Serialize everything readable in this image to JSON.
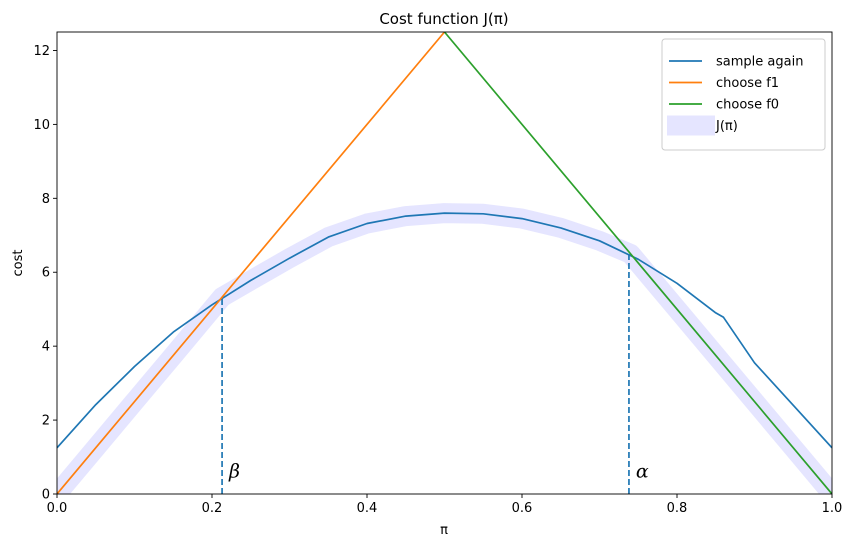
{
  "chart_data": {
    "type": "line",
    "title": "Cost function J(π)",
    "xlabel": "π",
    "ylabel": "cost",
    "xlim": [
      0,
      1
    ],
    "ylim": [
      0,
      12.5
    ],
    "xticks": [
      0.0,
      0.2,
      0.4,
      0.6,
      0.8,
      1.0
    ],
    "xtick_labels": [
      "0.0",
      "0.2",
      "0.4",
      "0.6",
      "0.8",
      "1.0"
    ],
    "yticks": [
      0,
      2,
      4,
      6,
      8,
      10,
      12
    ],
    "ytick_labels": [
      "0",
      "2",
      "4",
      "6",
      "8",
      "10",
      "12"
    ],
    "grid": false,
    "legend_position": "top-right",
    "series": [
      {
        "name": "sample again",
        "color": "#1f77b4",
        "style": "solid",
        "points": [
          [
            0.0,
            1.25
          ],
          [
            0.05,
            2.42
          ],
          [
            0.1,
            3.45
          ],
          [
            0.15,
            4.38
          ],
          [
            0.2,
            5.12
          ],
          [
            0.25,
            5.78
          ],
          [
            0.3,
            6.38
          ],
          [
            0.35,
            6.95
          ],
          [
            0.4,
            7.32
          ],
          [
            0.45,
            7.52
          ],
          [
            0.5,
            7.6
          ],
          [
            0.55,
            7.58
          ],
          [
            0.6,
            7.45
          ],
          [
            0.65,
            7.2
          ],
          [
            0.7,
            6.85
          ],
          [
            0.75,
            6.35
          ],
          [
            0.8,
            5.7
          ],
          [
            0.85,
            4.9
          ],
          [
            0.86,
            4.78
          ],
          [
            0.9,
            3.55
          ],
          [
            0.95,
            2.4
          ],
          [
            1.0,
            1.25
          ]
        ]
      },
      {
        "name": "choose f1",
        "color": "#ff7f0e",
        "style": "solid",
        "points": [
          [
            0.0,
            0.0
          ],
          [
            0.5,
            12.5
          ]
        ]
      },
      {
        "name": "choose f0",
        "color": "#2ca02c",
        "style": "solid",
        "points": [
          [
            0.5,
            12.5
          ],
          [
            1.0,
            0.0
          ]
        ]
      },
      {
        "name": "J(π)",
        "color": "#e5e5ff",
        "style": "band",
        "points": [
          [
            0.0,
            0.0
          ],
          [
            0.05,
            1.25
          ],
          [
            0.1,
            2.5
          ],
          [
            0.15,
            3.75
          ],
          [
            0.213,
            5.33
          ],
          [
            0.25,
            5.78
          ],
          [
            0.3,
            6.38
          ],
          [
            0.35,
            6.95
          ],
          [
            0.4,
            7.32
          ],
          [
            0.45,
            7.52
          ],
          [
            0.5,
            7.6
          ],
          [
            0.55,
            7.58
          ],
          [
            0.6,
            7.45
          ],
          [
            0.65,
            7.2
          ],
          [
            0.7,
            6.85
          ],
          [
            0.74,
            6.5
          ],
          [
            0.8,
            5.0
          ],
          [
            0.85,
            3.75
          ],
          [
            0.9,
            2.5
          ],
          [
            0.95,
            1.25
          ],
          [
            1.0,
            0.0
          ]
        ]
      }
    ],
    "vlines": [
      {
        "x": 0.213,
        "y_top": 5.33,
        "color": "#1f77b4",
        "style": "dashed",
        "label": "β",
        "label_x": 0.222,
        "label_y": 0.45
      },
      {
        "x": 0.738,
        "y_top": 6.5,
        "color": "#1f77b4",
        "style": "dashed",
        "label": "α",
        "label_x": 0.747,
        "label_y": 0.45
      }
    ]
  }
}
